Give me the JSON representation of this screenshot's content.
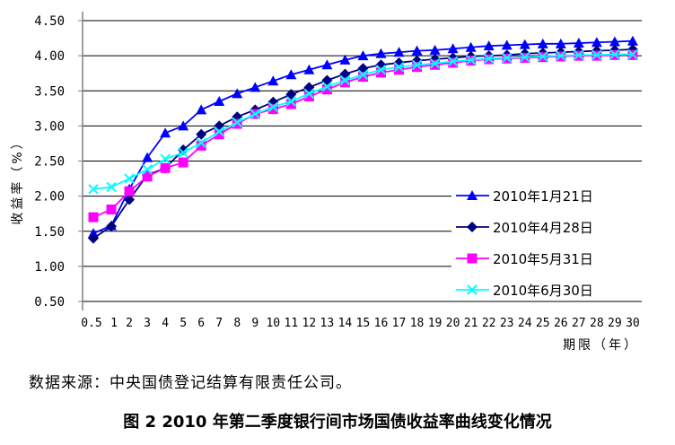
{
  "chart_data": {
    "type": "line",
    "title": "图 2 2010 年第二季度银行间市场国债收益率曲线变化情况",
    "xlabel": "期限（年）",
    "ylabel": "收益率（%）",
    "ylim": [
      0.5,
      4.5
    ],
    "yticks": [
      "0.50",
      "1.00",
      "1.50",
      "2.00",
      "2.50",
      "3.00",
      "3.50",
      "4.00",
      "4.50"
    ],
    "grid": true,
    "legend_position": "bottom-right",
    "categories": [
      "0.5",
      "1",
      "2",
      "3",
      "4",
      "5",
      "6",
      "7",
      "8",
      "9",
      "10",
      "11",
      "12",
      "13",
      "14",
      "15",
      "16",
      "17",
      "18",
      "19",
      "20",
      "21",
      "22",
      "23",
      "24",
      "25",
      "26",
      "27",
      "28",
      "29",
      "30"
    ],
    "series": [
      {
        "name": "2010年1月21日",
        "color": "#0000FF",
        "marker": "triangle",
        "values": [
          1.47,
          1.58,
          2.1,
          2.55,
          2.9,
          3.0,
          3.23,
          3.35,
          3.46,
          3.55,
          3.64,
          3.73,
          3.8,
          3.87,
          3.94,
          4.0,
          4.03,
          4.05,
          4.07,
          4.08,
          4.1,
          4.12,
          4.14,
          4.15,
          4.16,
          4.17,
          4.17,
          4.18,
          4.19,
          4.2,
          4.21
        ]
      },
      {
        "name": "2010年4月28日",
        "color": "#000080",
        "marker": "diamond",
        "values": [
          1.4,
          1.57,
          1.95,
          2.3,
          2.4,
          2.66,
          2.88,
          3.0,
          3.13,
          3.23,
          3.34,
          3.45,
          3.55,
          3.65,
          3.74,
          3.82,
          3.87,
          3.9,
          3.93,
          3.95,
          3.97,
          3.99,
          4.0,
          4.01,
          4.03,
          4.04,
          4.05,
          4.06,
          4.07,
          4.08,
          4.09
        ]
      },
      {
        "name": "2010年5月31日",
        "color": "#FF00FF",
        "marker": "square",
        "values": [
          1.7,
          1.81,
          2.07,
          2.28,
          2.4,
          2.48,
          2.72,
          2.88,
          3.03,
          3.17,
          3.24,
          3.31,
          3.42,
          3.52,
          3.62,
          3.7,
          3.76,
          3.8,
          3.84,
          3.87,
          3.9,
          3.93,
          3.95,
          3.96,
          3.97,
          3.98,
          3.99,
          4.0,
          4.0,
          4.01,
          4.01
        ]
      },
      {
        "name": "2010年6月30日",
        "color": "#00FFFF",
        "marker": "x",
        "values": [
          2.1,
          2.13,
          2.25,
          2.38,
          2.53,
          2.62,
          2.76,
          2.92,
          3.05,
          3.17,
          3.27,
          3.35,
          3.46,
          3.56,
          3.65,
          3.73,
          3.8,
          3.84,
          3.87,
          3.89,
          3.92,
          3.94,
          3.96,
          3.97,
          3.98,
          3.99,
          4.0,
          4.01,
          4.01,
          4.02,
          4.02
        ]
      }
    ]
  },
  "source": "数据来源：中央国债登记结算有限责任公司。"
}
